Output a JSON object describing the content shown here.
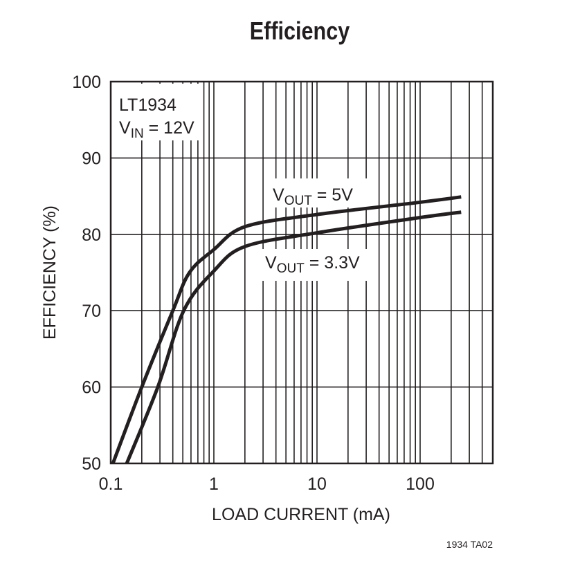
{
  "chart_data": {
    "type": "line",
    "title": "Efficiency",
    "xlabel": "LOAD CURRENT (mA)",
    "ylabel": "EFFICIENCY (%)",
    "xscale": "log",
    "xlim": [
      0.1,
      500
    ],
    "ylim": [
      50,
      100
    ],
    "xticks": [
      0.1,
      1,
      10,
      100
    ],
    "xtick_labels": [
      "0.1",
      "1",
      "10",
      "100"
    ],
    "yticks": [
      50,
      60,
      70,
      80,
      90,
      100
    ],
    "ytick_labels": [
      "50",
      "60",
      "70",
      "80",
      "90",
      "100"
    ],
    "grid": true,
    "annotation": {
      "line1": "LT1934",
      "line2_main": "V",
      "line2_sub": "IN",
      "line2_rest": " = 12V"
    },
    "figure_code": "1934 TA02",
    "series": [
      {
        "name": "VOUT = 5V",
        "label_main": "V",
        "label_sub": "OUT",
        "label_rest": " = 5V",
        "x": [
          0.105,
          0.2,
          0.4,
          0.58,
          1,
          2,
          10,
          100,
          250
        ],
        "y": [
          50,
          60,
          70,
          75,
          78,
          81,
          82.6,
          84.2,
          84.9
        ]
      },
      {
        "name": "VOUT = 3.3V",
        "label_main": "V",
        "label_sub": "OUT",
        "label_rest": " = 3.3V",
        "x": [
          0.143,
          0.286,
          0.51,
          1,
          2,
          10,
          100,
          250
        ],
        "y": [
          50,
          60,
          70,
          75.2,
          78.4,
          80.2,
          82.2,
          82.9
        ]
      }
    ],
    "line_color": "#231f20"
  }
}
